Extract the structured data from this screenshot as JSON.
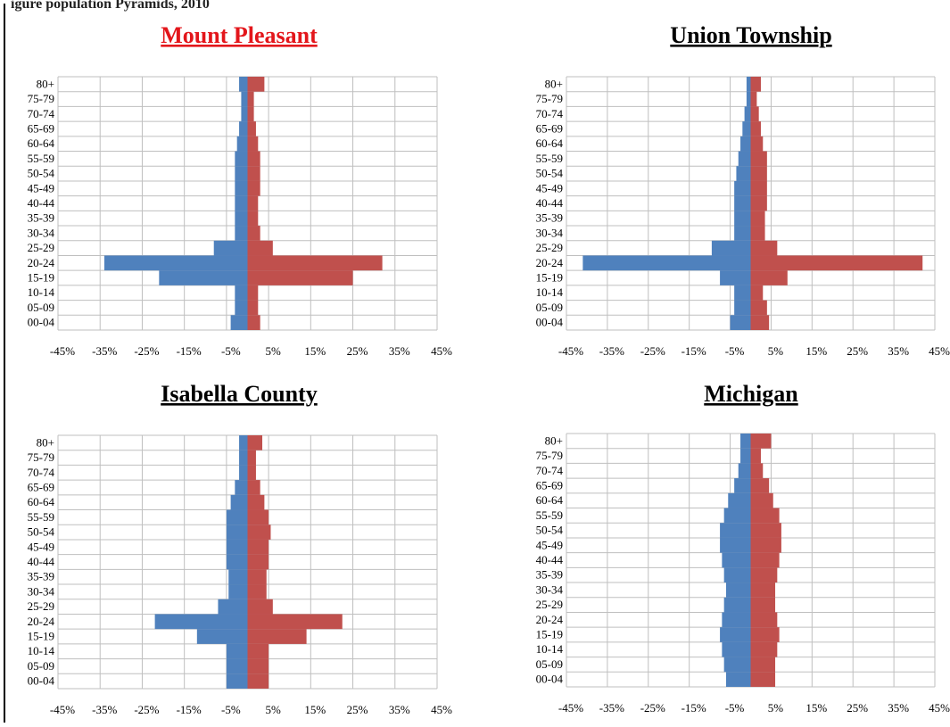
{
  "caption_fragment": "igure   population Pyramids, 2010",
  "x_tick_labels": [
    "-45%",
    "-35%",
    "-25%",
    "-15%",
    "-5%",
    "5%",
    "15%",
    "25%",
    "35%",
    "45%"
  ],
  "colors": {
    "male": "#4f81bd",
    "female": "#c0504d",
    "grid": "#bfbfbf",
    "title_red": "#e3161b",
    "title_black": "#000000"
  },
  "chart_data": [
    {
      "type": "bar",
      "title": "Mount Pleasant",
      "title_color": "#e3161b",
      "categories": [
        "00-04",
        "05-09",
        "10-14",
        "15-19",
        "20-24",
        "25-29",
        "30-34",
        "35-39",
        "40-44",
        "45-49",
        "50-54",
        "55-59",
        "60-64",
        "65-69",
        "70-74",
        "75-79",
        "80+"
      ],
      "series": [
        {
          "values": [
            -4,
            -3,
            -3,
            -21,
            -34,
            -8,
            -3,
            -3,
            -3,
            -3,
            -3,
            -3,
            -2.5,
            -2,
            -1.5,
            -1.5,
            -2
          ]
        },
        {
          "values": [
            3,
            2.5,
            2.5,
            25,
            32,
            6,
            3,
            2.5,
            2.5,
            3,
            3,
            3,
            2.5,
            2,
            1.5,
            1.5,
            4
          ]
        }
      ],
      "xlim": [
        -45,
        45
      ],
      "xlabel": "",
      "ylabel": ""
    },
    {
      "type": "bar",
      "title": "Union Township",
      "title_color": "#000000",
      "categories": [
        "00-04",
        "05-09",
        "10-14",
        "15-19",
        "20-24",
        "25-29",
        "30-34",
        "35-39",
        "40-44",
        "45-49",
        "50-54",
        "55-59",
        "60-64",
        "65-69",
        "70-74",
        "75-79",
        "80+"
      ],
      "series": [
        {
          "values": [
            -5,
            -4,
            -4,
            -7.5,
            -41,
            -9.5,
            -4,
            -4,
            -4,
            -4,
            -3.5,
            -3,
            -2.5,
            -2,
            -1.5,
            -1,
            -1
          ]
        },
        {
          "values": [
            4.5,
            4,
            3,
            9,
            42,
            6.5,
            3.5,
            3.5,
            4,
            4,
            4,
            4,
            3,
            2.5,
            2,
            1.5,
            2.5
          ]
        }
      ],
      "xlim": [
        -45,
        45
      ],
      "xlabel": "",
      "ylabel": ""
    },
    {
      "type": "bar",
      "title": "Isabella County",
      "title_color": "#000000",
      "categories": [
        "00-04",
        "05-09",
        "10-14",
        "15-19",
        "20-24",
        "25-29",
        "30-34",
        "35-39",
        "40-44",
        "45-49",
        "50-54",
        "55-59",
        "60-64",
        "65-69",
        "70-74",
        "75-79",
        "80+"
      ],
      "series": [
        {
          "values": [
            -5,
            -5,
            -5,
            -12,
            -22,
            -7,
            -4.5,
            -4.5,
            -5,
            -5,
            -5,
            -5,
            -4,
            -3,
            -2,
            -2,
            -2
          ]
        },
        {
          "values": [
            5,
            5,
            5,
            14,
            22.5,
            6,
            4.5,
            4.5,
            5,
            5,
            5.5,
            5,
            4,
            3,
            2,
            2,
            3.5
          ]
        }
      ],
      "xlim": [
        -45,
        45
      ],
      "xlabel": "",
      "ylabel": ""
    },
    {
      "type": "bar",
      "title": "Michigan",
      "title_color": "#000000",
      "categories": [
        "00-04",
        "05-09",
        "10-14",
        "15-19",
        "20-24",
        "25-29",
        "30-34",
        "35-39",
        "40-44",
        "45-49",
        "50-54",
        "55-59",
        "60-64",
        "65-69",
        "70-74",
        "75-79",
        "80+"
      ],
      "series": [
        {
          "values": [
            -6,
            -6.5,
            -7,
            -7.5,
            -7,
            -6.5,
            -6,
            -6.5,
            -7,
            -7.5,
            -7.5,
            -6.5,
            -5.5,
            -4,
            -3,
            -2.5,
            -2.5
          ]
        },
        {
          "values": [
            6,
            6,
            6.5,
            7,
            6.5,
            6,
            6,
            6.5,
            7,
            7.5,
            7.5,
            7,
            5.5,
            4.5,
            3,
            2.5,
            5
          ]
        }
      ],
      "xlim": [
        -45,
        45
      ],
      "xlabel": "",
      "ylabel": ""
    }
  ]
}
